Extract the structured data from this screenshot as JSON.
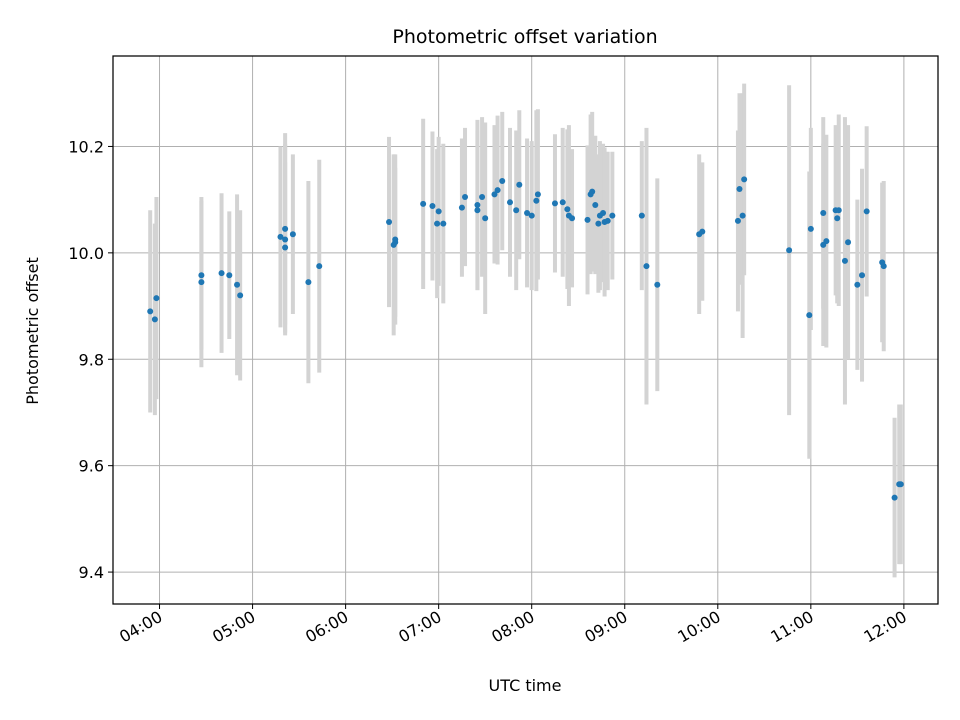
{
  "chart_data": {
    "type": "scatter",
    "title": "Photometric offset variation",
    "xlabel": "UTC time",
    "ylabel": "Photometric offset",
    "x_ticks": [
      "04:00",
      "05:00",
      "06:00",
      "07:00",
      "08:00",
      "09:00",
      "10:00",
      "11:00",
      "12:00"
    ],
    "y_ticks": [
      "9.4",
      "9.6",
      "9.8",
      "10.0",
      "10.2"
    ],
    "xlim": [
      "03:30",
      "12:22"
    ],
    "ylim": [
      9.34,
      10.37
    ],
    "grid": true,
    "colors": {
      "points": "#1f77b4",
      "errorbars": "#d3d3d3",
      "grid": "#b0b0b0"
    },
    "points": [
      {
        "t": "03:54",
        "y": 9.89,
        "err": 0.19
      },
      {
        "t": "03:57",
        "y": 9.875,
        "err": 0.18
      },
      {
        "t": "03:58",
        "y": 9.915,
        "err": 0.19
      },
      {
        "t": "04:27",
        "y": 9.945,
        "err": 0.16
      },
      {
        "t": "04:27",
        "y": 9.958,
        "err": 0.14
      },
      {
        "t": "04:40",
        "y": 9.962,
        "err": 0.15
      },
      {
        "t": "04:45",
        "y": 9.958,
        "err": 0.12
      },
      {
        "t": "04:50",
        "y": 9.94,
        "err": 0.17
      },
      {
        "t": "04:52",
        "y": 9.92,
        "err": 0.16
      },
      {
        "t": "05:18",
        "y": 10.03,
        "err": 0.17
      },
      {
        "t": "05:21",
        "y": 10.045,
        "err": 0.18
      },
      {
        "t": "05:21",
        "y": 10.01,
        "err": 0.16
      },
      {
        "t": "05:21",
        "y": 10.025,
        "err": 0.18
      },
      {
        "t": "05:26",
        "y": 10.035,
        "err": 0.15
      },
      {
        "t": "05:36",
        "y": 9.945,
        "err": 0.19
      },
      {
        "t": "05:43",
        "y": 9.975,
        "err": 0.2
      },
      {
        "t": "06:28",
        "y": 10.058,
        "err": 0.16
      },
      {
        "t": "06:31",
        "y": 10.015,
        "err": 0.17
      },
      {
        "t": "06:32",
        "y": 10.025,
        "err": 0.16
      },
      {
        "t": "06:32",
        "y": 10.02,
        "err": 0.14
      },
      {
        "t": "06:50",
        "y": 10.092,
        "err": 0.16
      },
      {
        "t": "06:56",
        "y": 10.088,
        "err": 0.14
      },
      {
        "t": "06:59",
        "y": 10.055,
        "err": 0.14
      },
      {
        "t": "07:00",
        "y": 10.078,
        "err": 0.14
      },
      {
        "t": "07:03",
        "y": 10.055,
        "err": 0.15
      },
      {
        "t": "07:15",
        "y": 10.085,
        "err": 0.13
      },
      {
        "t": "07:17",
        "y": 10.105,
        "err": 0.13
      },
      {
        "t": "07:25",
        "y": 10.09,
        "err": 0.16
      },
      {
        "t": "07:25",
        "y": 10.08,
        "err": 0.15
      },
      {
        "t": "07:28",
        "y": 10.105,
        "err": 0.15
      },
      {
        "t": "07:30",
        "y": 10.065,
        "err": 0.18
      },
      {
        "t": "07:36",
        "y": 10.11,
        "err": 0.13
      },
      {
        "t": "07:38",
        "y": 10.118,
        "err": 0.14
      },
      {
        "t": "07:41",
        "y": 10.135,
        "err": 0.13
      },
      {
        "t": "07:46",
        "y": 10.095,
        "err": 0.14
      },
      {
        "t": "07:50",
        "y": 10.08,
        "err": 0.15
      },
      {
        "t": "07:52",
        "y": 10.128,
        "err": 0.14
      },
      {
        "t": "07:57",
        "y": 10.075,
        "err": 0.14
      },
      {
        "t": "08:00",
        "y": 10.07,
        "err": 0.14
      },
      {
        "t": "08:03",
        "y": 10.098,
        "err": 0.17
      },
      {
        "t": "08:04",
        "y": 10.11,
        "err": 0.16
      },
      {
        "t": "08:15",
        "y": 10.093,
        "err": 0.13
      },
      {
        "t": "08:20",
        "y": 10.095,
        "err": 0.14
      },
      {
        "t": "08:23",
        "y": 10.082,
        "err": 0.15
      },
      {
        "t": "08:24",
        "y": 10.07,
        "err": 0.17
      },
      {
        "t": "08:26",
        "y": 10.065,
        "err": 0.13
      },
      {
        "t": "08:36",
        "y": 10.062,
        "err": 0.14
      },
      {
        "t": "08:38",
        "y": 10.11,
        "err": 0.15
      },
      {
        "t": "08:39",
        "y": 10.115,
        "err": 0.15
      },
      {
        "t": "08:41",
        "y": 10.09,
        "err": 0.13
      },
      {
        "t": "08:43",
        "y": 10.055,
        "err": 0.13
      },
      {
        "t": "08:44",
        "y": 10.07,
        "err": 0.14
      },
      {
        "t": "08:46",
        "y": 10.075,
        "err": 0.13
      },
      {
        "t": "08:47",
        "y": 10.058,
        "err": 0.14
      },
      {
        "t": "08:49",
        "y": 10.06,
        "err": 0.13
      },
      {
        "t": "08:52",
        "y": 10.07,
        "err": 0.12
      },
      {
        "t": "09:11",
        "y": 10.07,
        "err": 0.14
      },
      {
        "t": "09:14",
        "y": 9.975,
        "err": 0.26
      },
      {
        "t": "09:21",
        "y": 9.94,
        "err": 0.2
      },
      {
        "t": "09:48",
        "y": 10.035,
        "err": 0.15
      },
      {
        "t": "09:50",
        "y": 10.04,
        "err": 0.13
      },
      {
        "t": "10:13",
        "y": 10.06,
        "err": 0.17
      },
      {
        "t": "10:14",
        "y": 10.12,
        "err": 0.18
      },
      {
        "t": "10:16",
        "y": 10.07,
        "err": 0.23
      },
      {
        "t": "10:17",
        "y": 10.138,
        "err": 0.18
      },
      {
        "t": "10:46",
        "y": 10.005,
        "err": 0.31
      },
      {
        "t": "10:59",
        "y": 9.883,
        "err": 0.27
      },
      {
        "t": "11:00",
        "y": 10.045,
        "err": 0.19
      },
      {
        "t": "11:08",
        "y": 10.075,
        "err": 0.18
      },
      {
        "t": "11:08",
        "y": 10.015,
        "err": 0.19
      },
      {
        "t": "11:10",
        "y": 10.022,
        "err": 0.2
      },
      {
        "t": "11:16",
        "y": 10.08,
        "err": 0.16
      },
      {
        "t": "11:17",
        "y": 10.065,
        "err": 0.16
      },
      {
        "t": "11:18",
        "y": 10.08,
        "err": 0.18
      },
      {
        "t": "11:22",
        "y": 9.985,
        "err": 0.27
      },
      {
        "t": "11:24",
        "y": 10.02,
        "err": 0.22
      },
      {
        "t": "11:30",
        "y": 9.94,
        "err": 0.16
      },
      {
        "t": "11:33",
        "y": 9.958,
        "err": 0.2
      },
      {
        "t": "11:36",
        "y": 10.078,
        "err": 0.16
      },
      {
        "t": "11:46",
        "y": 9.982,
        "err": 0.15
      },
      {
        "t": "11:47",
        "y": 9.975,
        "err": 0.16
      },
      {
        "t": "11:54",
        "y": 9.54,
        "err": 0.15
      },
      {
        "t": "11:57",
        "y": 9.565,
        "err": 0.15
      },
      {
        "t": "11:58",
        "y": 9.565,
        "err": 0.15
      }
    ]
  }
}
